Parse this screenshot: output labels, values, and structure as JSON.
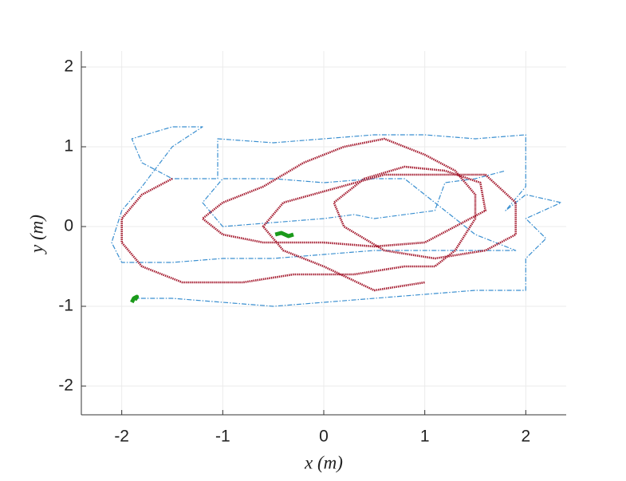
{
  "chart_data": {
    "type": "line",
    "xlabel": "x (m)",
    "ylabel": "y (m)",
    "xlim": [
      -2.4,
      2.4
    ],
    "ylim": [
      -2.36,
      2.2
    ],
    "xticks": [
      -2,
      -1,
      0,
      1,
      2
    ],
    "yticks": [
      -2,
      -1,
      0,
      1,
      2
    ],
    "grid": true,
    "series": [
      {
        "color": "#3a8fd0",
        "linestyle": "dashdot",
        "x": [
          -1.9,
          -1.5,
          -1.0,
          -0.5,
          0,
          0.5,
          1.0,
          1.5,
          2.0,
          2.0,
          2.2,
          2.0,
          2.35,
          2.0,
          1.8,
          2.0,
          2.0,
          2.0,
          1.5,
          1.0,
          0.5,
          0,
          -0.5,
          -1.05,
          -1.05,
          -1.5,
          -1.8,
          -1.9,
          -1.5,
          -1.2,
          -1.5,
          -1.8,
          -2.0,
          -2.1,
          -2.0,
          -1.5,
          -1.0,
          -0.5,
          0,
          0.5,
          1.0,
          1.5,
          1.9,
          1.5,
          1.2,
          0.8,
          0.5,
          0,
          -0.5,
          -1.0,
          -1.2,
          -1.0,
          -0.5,
          0,
          0.3,
          0.5,
          1.1,
          1.2,
          1.5,
          1.8
        ],
        "values": [
          -0.9,
          -0.9,
          -0.95,
          -1.0,
          -0.95,
          -0.9,
          -0.85,
          -0.8,
          -0.8,
          -0.4,
          -0.15,
          0.1,
          0.3,
          0.4,
          0.2,
          0.5,
          0.8,
          1.15,
          1.1,
          1.15,
          1.15,
          1.1,
          1.05,
          1.1,
          0.6,
          0.6,
          0.8,
          1.1,
          1.25,
          1.25,
          1.0,
          0.5,
          0.2,
          -0.2,
          -0.45,
          -0.45,
          -0.4,
          -0.4,
          -0.35,
          -0.3,
          -0.3,
          -0.3,
          -0.3,
          -0.1,
          0.2,
          0.6,
          0.6,
          0.55,
          0.6,
          0.6,
          0.3,
          0.0,
          0.05,
          0.1,
          0.15,
          0.1,
          0.2,
          0.55,
          0.6,
          0.7
        ]
      },
      {
        "color": "#a51c30",
        "linestyle": "dotted",
        "x": [
          -1.5,
          -1.8,
          -2.0,
          -2.0,
          -1.8,
          -1.4,
          -0.8,
          -0.3,
          0.3,
          0.8,
          1.1,
          1.3,
          1.5,
          1.5,
          1.3,
          1.0,
          0.6,
          0.2,
          -0.2,
          -0.6,
          -1.0,
          -1.2,
          -1.0,
          -0.6,
          0.0,
          0.5,
          1.0,
          1.3,
          1.6,
          1.55,
          1.2,
          0.8,
          0.4,
          0.1,
          0.2,
          0.6,
          1.1,
          1.6,
          1.9,
          1.9,
          1.6,
          0.6,
          -0.4,
          -0.6,
          -0.4,
          0.0,
          0.5,
          1.0
        ],
        "values": [
          0.6,
          0.4,
          0.1,
          -0.2,
          -0.5,
          -0.7,
          -0.7,
          -0.6,
          -0.6,
          -0.5,
          -0.5,
          -0.3,
          0.1,
          0.4,
          0.7,
          0.9,
          1.1,
          1.0,
          0.8,
          0.5,
          0.3,
          0.1,
          -0.1,
          -0.2,
          -0.2,
          -0.25,
          -0.2,
          0.0,
          0.2,
          0.55,
          0.7,
          0.75,
          0.6,
          0.3,
          0.0,
          -0.3,
          -0.4,
          -0.3,
          -0.1,
          0.3,
          0.65,
          0.65,
          0.3,
          0.0,
          -0.3,
          -0.5,
          -0.8,
          -0.7
        ]
      },
      {
        "color": "#1a9a1a",
        "linestyle": "solid",
        "x": [
          -0.48,
          -0.42,
          -0.35,
          -0.3
        ],
        "values": [
          -0.1,
          -0.08,
          -0.12,
          -0.1
        ]
      },
      {
        "color": "#1a9a1a",
        "linestyle": "solid",
        "x": [
          -1.9,
          -1.88,
          -1.85,
          -1.87
        ],
        "values": [
          -0.95,
          -0.9,
          -0.88,
          -0.92
        ]
      }
    ]
  }
}
